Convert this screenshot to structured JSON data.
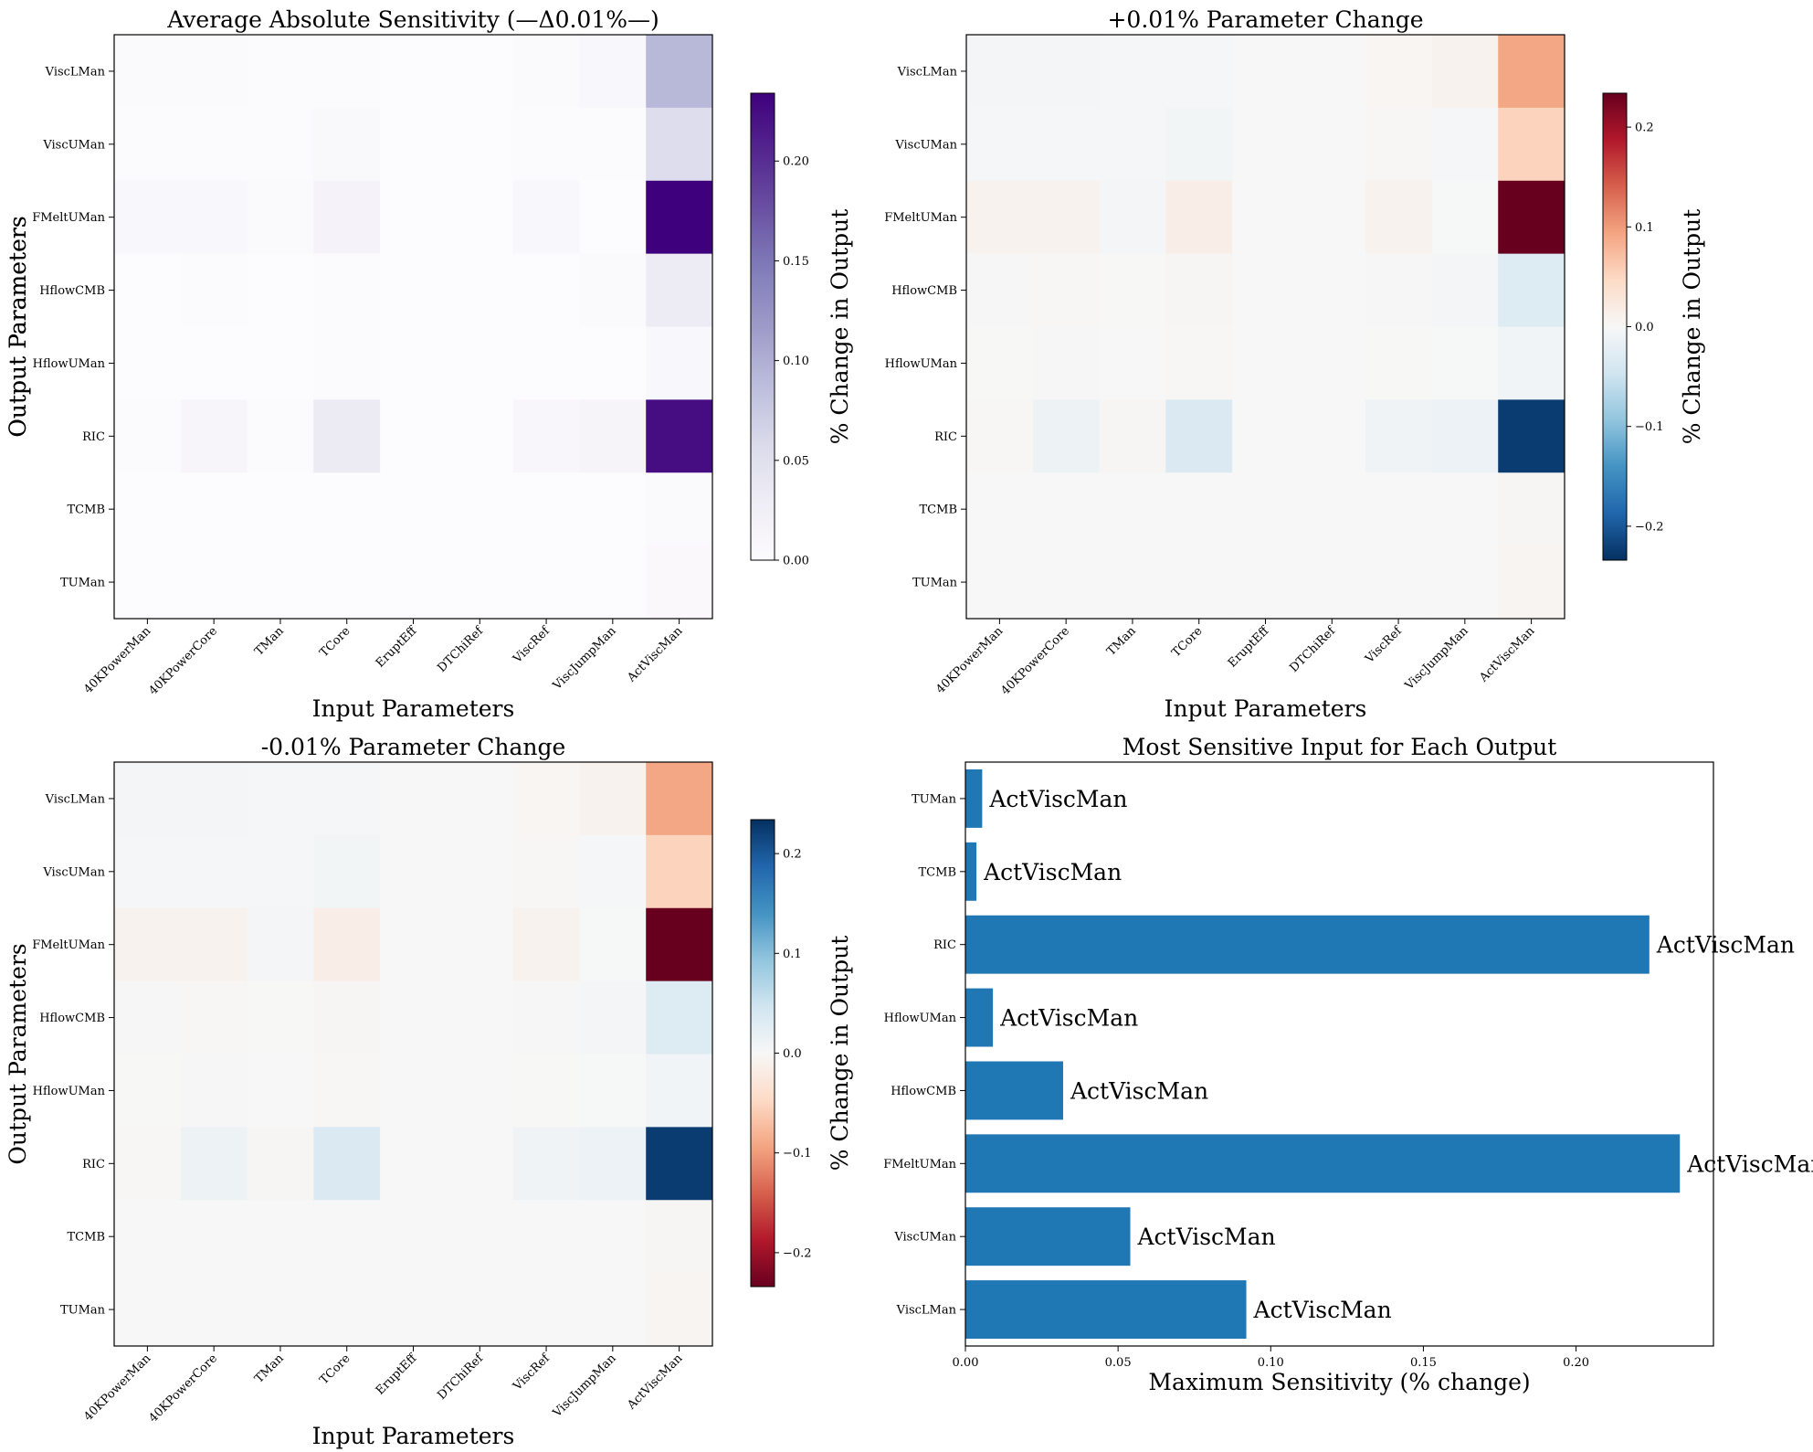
{
  "chart_data": [
    {
      "type": "heatmap",
      "panel": "avg",
      "title": "Average Absolute Sensitivity (—Δ0.01%—)",
      "xlabel": "Input Parameters",
      "ylabel": "Output Parameters",
      "colorbar_label": "% Change in Output",
      "colormap": "Purples",
      "vlim": [
        0,
        0.234
      ],
      "colorbar_ticks": [
        "0.00",
        "0.05",
        "0.10",
        "0.15",
        "0.20"
      ],
      "colorbar_tick_values": [
        0,
        0.05,
        0.1,
        0.15,
        0.2
      ],
      "x_categories": [
        "40KPowerMan",
        "40KPowerCore",
        "TMan",
        "TCore",
        "EruptEff",
        "DTChiRef",
        "ViscRef",
        "ViscJumpMan",
        "ActViscMan"
      ],
      "y_categories": [
        "ViscLMan",
        "ViscUMan",
        "FMeltUMan",
        "HflowCMB",
        "HflowUMan",
        "RIC",
        "TCMB",
        "TUMan"
      ],
      "values": [
        [
          0.004,
          0.004,
          0.002,
          0.003,
          0.0,
          0.0,
          0.004,
          0.008,
          0.092
        ],
        [
          0.002,
          0.002,
          0.002,
          0.006,
          0.0,
          0.0,
          0.002,
          0.002,
          0.054
        ],
        [
          0.009,
          0.009,
          0.004,
          0.016,
          0.0,
          0.0,
          0.008,
          0.001,
          0.234
        ],
        [
          0.001,
          0.002,
          0.0005,
          0.003,
          0.0,
          0.0,
          0.001,
          0.004,
          0.032
        ],
        [
          0.0005,
          0.001,
          0.0002,
          0.002,
          0.0,
          0.0,
          0.0005,
          0.001,
          0.009
        ],
        [
          0.002,
          0.012,
          0.003,
          0.034,
          0.0,
          0.0,
          0.01,
          0.014,
          0.224
        ],
        [
          0.0,
          0.0,
          0.0,
          0.0,
          0.0,
          0.0,
          0.0,
          0.0,
          0.0036
        ],
        [
          0.0,
          0.0,
          0.0,
          0.0,
          0.0,
          0.0,
          0.0,
          0.0,
          0.0055
        ]
      ]
    },
    {
      "type": "heatmap",
      "panel": "plus",
      "title": "+0.01% Parameter Change",
      "xlabel": "Input Parameters",
      "ylabel": "Output Parameters",
      "colorbar_label": "% Change in Output",
      "colormap": "RdBu_r",
      "vlim": [
        -0.234,
        0.234
      ],
      "colorbar_ticks": [
        "−0.2",
        "−0.1",
        "0.0",
        "0.1",
        "0.2"
      ],
      "colorbar_tick_values": [
        -0.2,
        -0.1,
        0.0,
        0.1,
        0.2
      ],
      "x_categories": [
        "40KPowerMan",
        "40KPowerCore",
        "TMan",
        "TCore",
        "EruptEff",
        "DTChiRef",
        "ViscRef",
        "ViscJumpMan",
        "ActViscMan"
      ],
      "y_categories": [
        "ViscLMan",
        "ViscUMan",
        "FMeltUMan",
        "HflowCMB",
        "HflowUMan",
        "RIC",
        "TCMB",
        "TUMan"
      ],
      "values": [
        [
          -0.004,
          -0.004,
          -0.002,
          -0.003,
          0.0,
          0.0,
          0.004,
          0.008,
          0.092
        ],
        [
          -0.002,
          -0.002,
          -0.002,
          -0.006,
          0.0,
          0.0,
          0.002,
          -0.002,
          0.054
        ],
        [
          0.009,
          0.009,
          -0.004,
          0.016,
          0.0,
          0.0,
          0.008,
          -0.001,
          0.234
        ],
        [
          0.001,
          0.002,
          0.0005,
          0.003,
          0.0,
          0.0,
          0.001,
          -0.004,
          -0.032
        ],
        [
          0.0005,
          0.001,
          0.0002,
          0.002,
          0.0,
          0.0,
          0.0005,
          -0.001,
          -0.009
        ],
        [
          0.002,
          -0.012,
          0.003,
          -0.034,
          0.0,
          0.0,
          -0.01,
          -0.014,
          -0.224
        ],
        [
          0.0,
          0.0,
          0.0,
          0.0,
          0.0,
          0.0,
          0.0,
          0.0,
          0.0036
        ],
        [
          0.0,
          0.0,
          0.0,
          0.0,
          0.0,
          0.0,
          0.0,
          0.0,
          0.0055
        ]
      ]
    },
    {
      "type": "heatmap",
      "panel": "minus",
      "title": "-0.01% Parameter Change",
      "xlabel": "Input Parameters",
      "ylabel": "Output Parameters",
      "colorbar_label": "% Change in Output",
      "colormap": "RdBu",
      "vlim": [
        -0.234,
        0.234
      ],
      "colorbar_ticks": [
        "−0.2",
        "−0.1",
        "0.0",
        "0.1",
        "0.2"
      ],
      "colorbar_tick_values": [
        -0.2,
        -0.1,
        0.0,
        0.1,
        0.2
      ],
      "x_categories": [
        "40KPowerMan",
        "40KPowerCore",
        "TMan",
        "TCore",
        "EruptEff",
        "DTChiRef",
        "ViscRef",
        "ViscJumpMan",
        "ActViscMan"
      ],
      "y_categories": [
        "ViscLMan",
        "ViscUMan",
        "FMeltUMan",
        "HflowCMB",
        "HflowUMan",
        "RIC",
        "TCMB",
        "TUMan"
      ],
      "values": [
        [
          0.004,
          0.004,
          0.002,
          0.003,
          0.0,
          0.0,
          -0.004,
          -0.008,
          -0.092
        ],
        [
          0.002,
          0.002,
          0.002,
          0.006,
          0.0,
          0.0,
          -0.002,
          0.002,
          -0.054
        ],
        [
          -0.009,
          -0.009,
          0.004,
          -0.016,
          0.0,
          0.0,
          -0.008,
          0.001,
          -0.234
        ],
        [
          -0.001,
          -0.002,
          -0.0005,
          -0.003,
          0.0,
          0.0,
          -0.001,
          0.004,
          0.032
        ],
        [
          -0.0005,
          -0.001,
          -0.0002,
          -0.002,
          0.0,
          0.0,
          -0.0005,
          0.001,
          0.009
        ],
        [
          -0.002,
          0.012,
          -0.003,
          0.034,
          0.0,
          0.0,
          0.01,
          0.014,
          0.224
        ],
        [
          0.0,
          0.0,
          0.0,
          0.0,
          0.0,
          0.0,
          0.0,
          0.0,
          -0.0036
        ],
        [
          0.0,
          0.0,
          0.0,
          0.0,
          0.0,
          0.0,
          0.0,
          0.0,
          -0.0055
        ]
      ]
    },
    {
      "type": "bar",
      "orientation": "horizontal",
      "title": "Most Sensitive Input for Each Output",
      "xlabel": "Maximum Sensitivity (% change)",
      "ylabel": "",
      "categories": [
        "ViscLMan",
        "ViscUMan",
        "FMeltUMan",
        "HflowCMB",
        "HflowUMan",
        "RIC",
        "TCMB",
        "TUMan"
      ],
      "values": [
        0.092,
        0.054,
        0.234,
        0.032,
        0.009,
        0.224,
        0.0036,
        0.0055
      ],
      "bar_labels": [
        "ActViscMan",
        "ActViscMan",
        "ActViscMan",
        "ActViscMan",
        "ActViscMan",
        "ActViscMan",
        "ActViscMan",
        "ActViscMan"
      ],
      "xlim": [
        0,
        0.245
      ],
      "x_ticks": [
        "0.00",
        "0.05",
        "0.10",
        "0.15",
        "0.20"
      ],
      "x_tick_values": [
        0,
        0.05,
        0.1,
        0.15,
        0.2
      ],
      "bar_color": "#1f77b4"
    }
  ]
}
